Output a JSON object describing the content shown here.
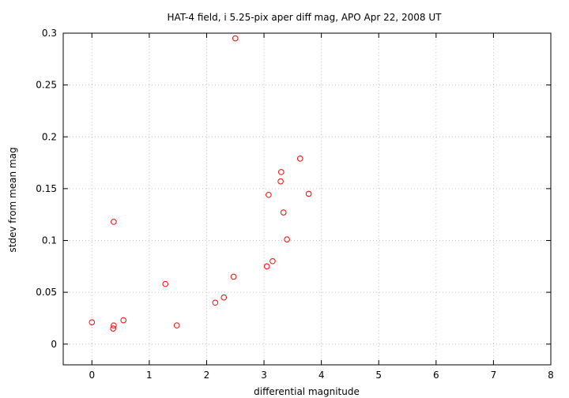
{
  "chart_data": {
    "type": "scatter",
    "title": "HAT-4 field, i 5.25-pix aper diff mag, APO Apr 22, 2008 UT",
    "xlabel": "differential magnitude",
    "ylabel": "stdev from mean mag",
    "xlim": [
      -0.5,
      8
    ],
    "ylim": [
      -0.02,
      0.3
    ],
    "x_ticks": [
      0,
      1,
      2,
      3,
      4,
      5,
      6,
      7,
      8
    ],
    "y_ticks": [
      0,
      0.05,
      0.1,
      0.15,
      0.2,
      0.25,
      0.3
    ],
    "x_tick_labels": [
      "0",
      "1",
      "2",
      "3",
      "4",
      "5",
      "6",
      "7",
      "8"
    ],
    "y_tick_labels": [
      "0",
      "0.05",
      "0.1",
      "0.15",
      "0.2",
      "0.25",
      "0.3"
    ],
    "grid": true,
    "marker": "open-circle",
    "series": [
      {
        "color": "#ff0000",
        "points": [
          {
            "x": 0.0,
            "y": 0.021
          },
          {
            "x": 0.37,
            "y": 0.015
          },
          {
            "x": 0.38,
            "y": 0.018
          },
          {
            "x": 0.38,
            "y": 0.118
          },
          {
            "x": 0.55,
            "y": 0.023
          },
          {
            "x": 1.28,
            "y": 0.058
          },
          {
            "x": 1.48,
            "y": 0.018
          },
          {
            "x": 2.15,
            "y": 0.04
          },
          {
            "x": 2.3,
            "y": 0.045
          },
          {
            "x": 2.47,
            "y": 0.065
          },
          {
            "x": 2.5,
            "y": 0.295
          },
          {
            "x": 3.05,
            "y": 0.075
          },
          {
            "x": 3.08,
            "y": 0.144
          },
          {
            "x": 3.15,
            "y": 0.08
          },
          {
            "x": 3.29,
            "y": 0.157
          },
          {
            "x": 3.3,
            "y": 0.166
          },
          {
            "x": 3.34,
            "y": 0.127
          },
          {
            "x": 3.4,
            "y": 0.101
          },
          {
            "x": 3.63,
            "y": 0.179
          },
          {
            "x": 3.78,
            "y": 0.145
          }
        ]
      }
    ]
  }
}
